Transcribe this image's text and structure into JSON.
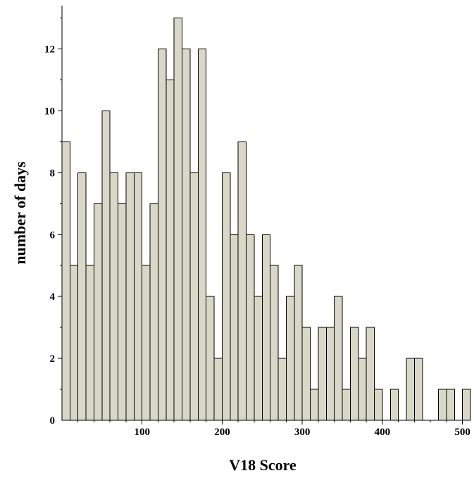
{
  "chart_data": {
    "type": "bar",
    "xlabel": "V18 Score",
    "ylabel": "number of days",
    "bin_width": 10,
    "bin_start": 0,
    "values": [
      9,
      5,
      8,
      5,
      7,
      10,
      8,
      7,
      8,
      8,
      5,
      7,
      12,
      11,
      13,
      12,
      8,
      12,
      4,
      2,
      8,
      6,
      9,
      6,
      4,
      6,
      5,
      2,
      4,
      5,
      3,
      1,
      3,
      3,
      4,
      1,
      3,
      2,
      3,
      1,
      0,
      1,
      0,
      2,
      2,
      0,
      0,
      1,
      1,
      0,
      1
    ],
    "xlim": [
      0,
      510
    ],
    "ylim": [
      0,
      13.4
    ],
    "xticks": [
      100,
      200,
      300,
      400,
      500
    ],
    "yticks": [
      0,
      2,
      4,
      6,
      8,
      10,
      12
    ],
    "grid": false,
    "legend": "none",
    "bar_color": "#d8d8c8"
  }
}
